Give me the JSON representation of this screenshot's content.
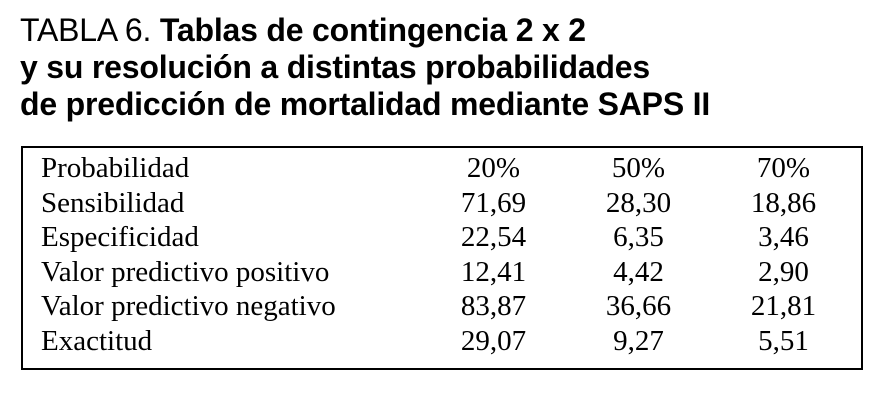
{
  "title": {
    "label": "TABLA 6.",
    "line1": "Tablas de contingencia 2 x 2",
    "line2": "y su resolución a distintas probabilidades",
    "line3": "de predicción de mortalidad mediante SAPS II"
  },
  "table": {
    "header": {
      "label": "Probabilidad",
      "cols": [
        "20%",
        "50%",
        "70%"
      ]
    },
    "rows": [
      {
        "label": "Sensibilidad",
        "values": [
          "71,69",
          "28,30",
          "18,86"
        ]
      },
      {
        "label": "Especificidad",
        "values": [
          "22,54",
          "6,35",
          "3,46"
        ]
      },
      {
        "label": "Valor predictivo positivo",
        "values": [
          "12,41",
          "4,42",
          "2,90"
        ]
      },
      {
        "label": "Valor predictivo negativo",
        "values": [
          "83,87",
          "36,66",
          "21,81"
        ]
      },
      {
        "label": "Exactitud",
        "values": [
          "29,07",
          "9,27",
          "5,51"
        ]
      }
    ]
  }
}
